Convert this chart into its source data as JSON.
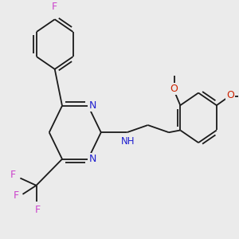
{
  "bg_color": "#ebebeb",
  "bond_color": "#1a1a1a",
  "N_color": "#2020d0",
  "F_color": "#cc44cc",
  "O_color": "#cc2200",
  "lw": 1.3,
  "dbo": 0.13,
  "xlim": [
    0,
    10
  ],
  "ylim": [
    0,
    10
  ]
}
